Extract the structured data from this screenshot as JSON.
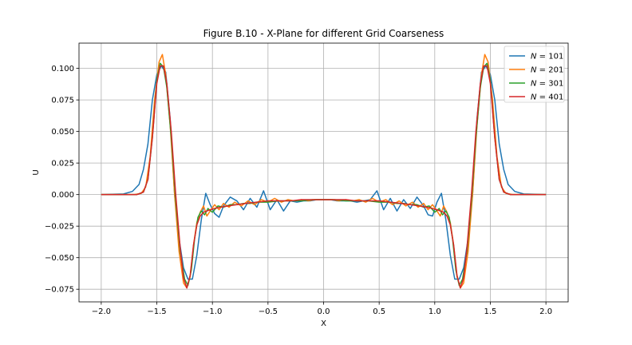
{
  "chart_data": {
    "type": "line",
    "title": "Figure B.10 - X-Plane for different Grid Coarseness",
    "xlabel": "X",
    "ylabel": "U",
    "xlim": [
      -2.2,
      2.2
    ],
    "ylim": [
      -0.085,
      0.12
    ],
    "xticks": [
      -2.0,
      -1.5,
      -1.0,
      -0.5,
      0.0,
      0.5,
      1.0,
      1.5,
      2.0
    ],
    "xtick_labels": [
      "−2.0",
      "−1.5",
      "−1.0",
      "−0.5",
      "0.0",
      "0.5",
      "1.0",
      "1.5",
      "2.0"
    ],
    "yticks": [
      -0.075,
      -0.05,
      -0.025,
      0.0,
      0.025,
      0.05,
      0.075,
      0.1
    ],
    "ytick_labels": [
      "−0.075",
      "−0.050",
      "−0.025",
      "0.000",
      "0.025",
      "0.050",
      "0.075",
      "0.100"
    ],
    "grid": true,
    "legend_position": "top-right",
    "series": [
      {
        "name": "N = 101",
        "legend_prefix": "N",
        "legend_value": "101",
        "color": "#1f77b4",
        "x": [
          -2.0,
          -1.8,
          -1.72,
          -1.66,
          -1.62,
          -1.58,
          -1.54,
          -1.5,
          -1.46,
          -1.42,
          -1.38,
          -1.34,
          -1.3,
          -1.26,
          -1.22,
          -1.18,
          -1.14,
          -1.1,
          -1.06,
          -1.02,
          -0.98,
          -0.94,
          -0.9,
          -0.84,
          -0.78,
          -0.72,
          -0.66,
          -0.6,
          -0.54,
          -0.48,
          -0.42,
          -0.36,
          -0.3,
          -0.24,
          -0.18,
          -0.12,
          -0.06,
          0.0,
          0.06,
          0.12,
          0.18,
          0.24,
          0.3,
          0.36,
          0.42,
          0.48,
          0.54,
          0.6,
          0.66,
          0.72,
          0.78,
          0.84,
          0.9,
          0.94,
          0.98,
          1.02,
          1.06,
          1.1,
          1.14,
          1.18,
          1.22,
          1.26,
          1.3,
          1.34,
          1.38,
          1.42,
          1.46,
          1.5,
          1.54,
          1.58,
          1.62,
          1.66,
          1.72,
          1.8,
          2.0
        ],
        "y": [
          0.0,
          0.0005,
          0.0025,
          0.008,
          0.02,
          0.04,
          0.075,
          0.095,
          0.102,
          0.097,
          0.06,
          0.0,
          -0.035,
          -0.058,
          -0.067,
          -0.067,
          -0.048,
          -0.02,
          0.001,
          -0.008,
          -0.015,
          -0.018,
          -0.009,
          -0.002,
          -0.005,
          -0.012,
          -0.003,
          -0.01,
          0.003,
          -0.012,
          -0.004,
          -0.013,
          -0.005,
          -0.006,
          -0.005,
          -0.005,
          -0.004,
          -0.004,
          -0.004,
          -0.005,
          -0.005,
          -0.005,
          -0.006,
          -0.005,
          -0.004,
          0.003,
          -0.012,
          -0.003,
          -0.013,
          -0.004,
          -0.011,
          -0.002,
          -0.009,
          -0.016,
          -0.017,
          -0.006,
          0.001,
          -0.02,
          -0.048,
          -0.067,
          -0.067,
          -0.058,
          -0.035,
          0.0,
          0.06,
          0.097,
          0.102,
          0.095,
          0.075,
          0.04,
          0.02,
          0.008,
          0.0025,
          0.0005,
          0.0
        ]
      },
      {
        "name": "N = 201",
        "legend_prefix": "N",
        "legend_value": "201",
        "color": "#ff7f0e",
        "x": [
          -2.0,
          -1.7,
          -1.64,
          -1.6,
          -1.56,
          -1.52,
          -1.48,
          -1.45,
          -1.42,
          -1.38,
          -1.34,
          -1.3,
          -1.26,
          -1.23,
          -1.2,
          -1.17,
          -1.14,
          -1.11,
          -1.08,
          -1.05,
          -1.02,
          -0.98,
          -0.94,
          -0.9,
          -0.85,
          -0.8,
          -0.74,
          -0.68,
          -0.62,
          -0.56,
          -0.5,
          -0.44,
          -0.38,
          -0.32,
          -0.26,
          -0.2,
          -0.14,
          -0.08,
          0.0,
          0.08,
          0.14,
          0.2,
          0.26,
          0.32,
          0.38,
          0.44,
          0.5,
          0.56,
          0.62,
          0.68,
          0.74,
          0.8,
          0.85,
          0.9,
          0.94,
          0.98,
          1.02,
          1.05,
          1.08,
          1.11,
          1.14,
          1.17,
          1.2,
          1.23,
          1.26,
          1.3,
          1.34,
          1.38,
          1.42,
          1.45,
          1.48,
          1.52,
          1.56,
          1.6,
          1.64,
          1.7,
          2.0
        ],
        "y": [
          0.0,
          0.0,
          0.001,
          0.006,
          0.03,
          0.075,
          0.105,
          0.111,
          0.095,
          0.055,
          0.0,
          -0.045,
          -0.07,
          -0.074,
          -0.065,
          -0.04,
          -0.022,
          -0.014,
          -0.009,
          -0.017,
          -0.013,
          -0.008,
          -0.012,
          -0.007,
          -0.01,
          -0.006,
          -0.009,
          -0.005,
          -0.008,
          -0.004,
          -0.006,
          -0.003,
          -0.006,
          -0.004,
          -0.005,
          -0.004,
          -0.005,
          -0.004,
          -0.004,
          -0.004,
          -0.005,
          -0.004,
          -0.005,
          -0.004,
          -0.006,
          -0.003,
          -0.006,
          -0.004,
          -0.008,
          -0.005,
          -0.009,
          -0.006,
          -0.01,
          -0.007,
          -0.012,
          -0.008,
          -0.013,
          -0.017,
          -0.009,
          -0.014,
          -0.022,
          -0.04,
          -0.065,
          -0.074,
          -0.07,
          -0.045,
          0.0,
          0.055,
          0.095,
          0.111,
          0.105,
          0.075,
          0.03,
          0.006,
          0.001,
          0.0,
          0.0
        ]
      },
      {
        "name": "N = 301",
        "legend_prefix": "N",
        "legend_value": "301",
        "color": "#2ca02c",
        "x": [
          -2.0,
          -1.68,
          -1.62,
          -1.58,
          -1.54,
          -1.5,
          -1.47,
          -1.44,
          -1.41,
          -1.37,
          -1.33,
          -1.29,
          -1.25,
          -1.22,
          -1.19,
          -1.16,
          -1.13,
          -1.1,
          -1.07,
          -1.04,
          -1.0,
          -0.95,
          -0.9,
          -0.84,
          -0.78,
          -0.72,
          -0.66,
          -0.6,
          -0.5,
          -0.4,
          -0.3,
          -0.2,
          -0.1,
          0.0,
          0.1,
          0.2,
          0.3,
          0.4,
          0.5,
          0.6,
          0.66,
          0.72,
          0.78,
          0.84,
          0.9,
          0.95,
          1.0,
          1.04,
          1.07,
          1.1,
          1.13,
          1.16,
          1.19,
          1.22,
          1.25,
          1.29,
          1.33,
          1.37,
          1.41,
          1.44,
          1.47,
          1.5,
          1.54,
          1.58,
          1.62,
          1.68,
          2.0
        ],
        "y": [
          0.0,
          0.0,
          0.002,
          0.012,
          0.045,
          0.09,
          0.104,
          0.101,
          0.085,
          0.045,
          -0.005,
          -0.045,
          -0.067,
          -0.072,
          -0.06,
          -0.035,
          -0.018,
          -0.013,
          -0.016,
          -0.011,
          -0.014,
          -0.009,
          -0.01,
          -0.008,
          -0.008,
          -0.007,
          -0.007,
          -0.006,
          -0.006,
          -0.005,
          -0.005,
          -0.005,
          -0.004,
          -0.004,
          -0.004,
          -0.005,
          -0.005,
          -0.005,
          -0.006,
          -0.006,
          -0.007,
          -0.007,
          -0.008,
          -0.008,
          -0.01,
          -0.009,
          -0.014,
          -0.011,
          -0.016,
          -0.013,
          -0.018,
          -0.035,
          -0.06,
          -0.072,
          -0.067,
          -0.045,
          -0.005,
          0.045,
          0.085,
          0.101,
          0.104,
          0.09,
          0.045,
          0.012,
          0.002,
          0.0,
          0.0
        ]
      },
      {
        "name": "N = 401",
        "legend_prefix": "N",
        "legend_value": "401",
        "color": "#d62728",
        "x": [
          -2.0,
          -1.68,
          -1.62,
          -1.58,
          -1.54,
          -1.5,
          -1.47,
          -1.44,
          -1.41,
          -1.37,
          -1.33,
          -1.29,
          -1.26,
          -1.23,
          -1.2,
          -1.17,
          -1.14,
          -1.11,
          -1.08,
          -1.05,
          -1.02,
          -0.98,
          -0.93,
          -0.86,
          -0.78,
          -0.7,
          -0.6,
          -0.5,
          -0.4,
          -0.3,
          -0.2,
          -0.1,
          0.0,
          0.1,
          0.2,
          0.3,
          0.4,
          0.5,
          0.6,
          0.7,
          0.78,
          0.86,
          0.93,
          0.98,
          1.02,
          1.05,
          1.08,
          1.11,
          1.14,
          1.17,
          1.2,
          1.23,
          1.26,
          1.29,
          1.33,
          1.37,
          1.41,
          1.44,
          1.47,
          1.5,
          1.54,
          1.58,
          1.62,
          1.68,
          2.0
        ],
        "y": [
          0.0,
          0.0,
          0.002,
          0.012,
          0.045,
          0.088,
          0.102,
          0.102,
          0.088,
          0.05,
          0.0,
          -0.042,
          -0.066,
          -0.074,
          -0.064,
          -0.04,
          -0.024,
          -0.017,
          -0.014,
          -0.013,
          -0.012,
          -0.011,
          -0.01,
          -0.009,
          -0.008,
          -0.007,
          -0.006,
          -0.005,
          -0.005,
          -0.005,
          -0.004,
          -0.004,
          -0.004,
          -0.004,
          -0.004,
          -0.005,
          -0.005,
          -0.005,
          -0.006,
          -0.007,
          -0.008,
          -0.009,
          -0.01,
          -0.011,
          -0.012,
          -0.013,
          -0.014,
          -0.017,
          -0.024,
          -0.04,
          -0.064,
          -0.074,
          -0.066,
          -0.042,
          0.0,
          0.05,
          0.088,
          0.102,
          0.102,
          0.088,
          0.045,
          0.012,
          0.002,
          0.0,
          0.0
        ]
      }
    ]
  }
}
